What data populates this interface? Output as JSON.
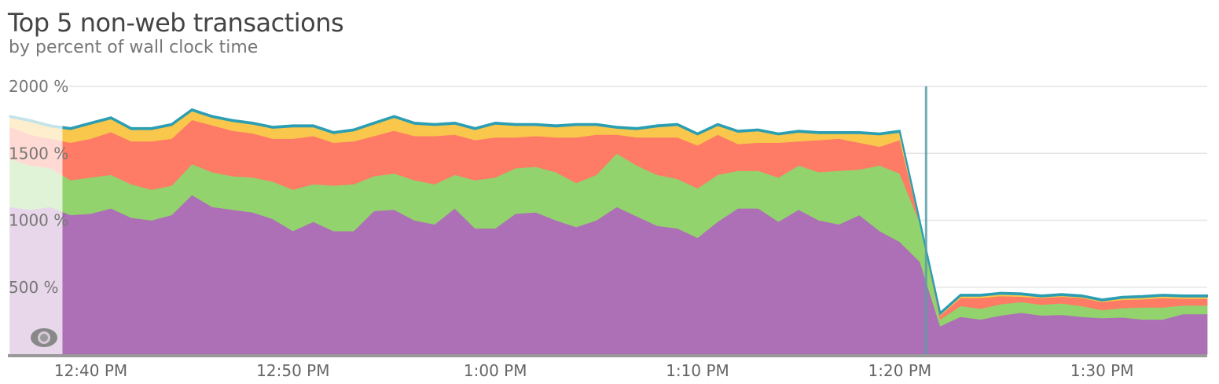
{
  "chart_data": {
    "type": "area",
    "stacked": true,
    "title": "Top 5 non-web transactions",
    "subtitle": "by percent of wall clock time",
    "ylim": [
      0,
      2000
    ],
    "yticks": [
      "500 %",
      "1000 %",
      "1500 %",
      "2000 %"
    ],
    "ytick_values": [
      500,
      1000,
      1500,
      2000
    ],
    "xticks": [
      "12:40 PM",
      "12:50 PM",
      "1:00 PM",
      "1:10 PM",
      "1:20 PM",
      "1:30 PM"
    ],
    "xtick_minutes": [
      40,
      50,
      60,
      70,
      80,
      90
    ],
    "xlim_minutes": [
      35.9,
      95.2
    ],
    "x_minutes": [
      36.0,
      37.0,
      38.0,
      39.0,
      40.0,
      41.0,
      42.0,
      43.0,
      44.0,
      45.0,
      46.0,
      47.0,
      48.0,
      49.0,
      50.0,
      51.0,
      52.0,
      53.0,
      54.0,
      55.0,
      56.0,
      57.0,
      58.0,
      59.0,
      60.0,
      61.0,
      62.0,
      63.0,
      64.0,
      65.0,
      66.0,
      67.0,
      68.0,
      69.0,
      70.0,
      71.0,
      72.0,
      73.0,
      74.0,
      75.0,
      76.0,
      77.0,
      78.0,
      79.0,
      80.0,
      81.0,
      82.0,
      83.0,
      84.0,
      85.0,
      86.0,
      87.0,
      88.0,
      89.0,
      90.0,
      91.0,
      92.0,
      93.0,
      94.0,
      95.2
    ],
    "grid": true,
    "legend": "none",
    "series": [
      {
        "color": "#ad6fb5",
        "values": [
          1100,
          1080,
          1100,
          1040,
          1050,
          1090,
          1020,
          1000,
          1040,
          1190,
          1100,
          1080,
          1060,
          1010,
          920,
          990,
          920,
          920,
          1070,
          1080,
          1000,
          970,
          1090,
          940,
          940,
          1050,
          1060,
          1000,
          950,
          1000,
          1100,
          1030,
          960,
          940,
          870,
          990,
          1090,
          1090,
          990,
          1080,
          1000,
          970,
          1040,
          920,
          840,
          690,
          210,
          280,
          260,
          290,
          310,
          290,
          295,
          280,
          270,
          275,
          260,
          260,
          300,
          300
        ]
      },
      {
        "color": "#92d36e",
        "values": [
          360,
          330,
          290,
          260,
          270,
          250,
          250,
          230,
          220,
          230,
          260,
          250,
          260,
          280,
          310,
          280,
          340,
          350,
          260,
          270,
          300,
          300,
          250,
          360,
          380,
          340,
          340,
          360,
          330,
          340,
          400,
          380,
          380,
          370,
          370,
          350,
          280,
          280,
          330,
          330,
          360,
          400,
          340,
          490,
          510,
          290,
          50,
          80,
          80,
          85,
          80,
          80,
          85,
          80,
          60,
          70,
          90,
          90,
          65,
          65
        ]
      },
      {
        "color": "#fe7b66",
        "values": [
          240,
          230,
          220,
          280,
          290,
          320,
          320,
          360,
          350,
          330,
          350,
          340,
          330,
          320,
          380,
          360,
          320,
          320,
          300,
          320,
          330,
          360,
          300,
          300,
          300,
          230,
          230,
          260,
          340,
          300,
          140,
          210,
          280,
          310,
          320,
          300,
          200,
          210,
          260,
          180,
          240,
          240,
          200,
          140,
          250,
          0,
          30,
          60,
          80,
          60,
          40,
          50,
          50,
          60,
          60,
          60,
          60,
          70,
          50,
          50
        ]
      },
      {
        "color": "#f8c74b",
        "values": [
          70,
          100,
          90,
          100,
          110,
          100,
          90,
          90,
          100,
          70,
          60,
          70,
          70,
          80,
          90,
          70,
          70,
          80,
          90,
          100,
          90,
          80,
          80,
          80,
          100,
          90,
          80,
          80,
          90,
          70,
          50,
          60,
          80,
          90,
          80,
          70,
          90,
          90,
          60,
          70,
          50,
          40,
          70,
          90,
          60,
          0,
          10,
          15,
          15,
          15,
          15,
          10,
          10,
          10,
          10,
          15,
          15,
          15,
          15,
          15
        ]
      },
      {
        "color": "#2b9eb3",
        "values": [
          10,
          10,
          10,
          10,
          10,
          10,
          10,
          10,
          10,
          10,
          10,
          10,
          10,
          10,
          10,
          10,
          10,
          10,
          10,
          10,
          10,
          10,
          10,
          10,
          10,
          10,
          10,
          10,
          10,
          10,
          10,
          10,
          10,
          10,
          10,
          10,
          10,
          10,
          10,
          10,
          10,
          10,
          10,
          10,
          10,
          10,
          10,
          10,
          10,
          10,
          10,
          10,
          10,
          10,
          10,
          10,
          10,
          10,
          10,
          10
        ]
      }
    ],
    "marker_minute": 81.3,
    "axis_color": "#999999",
    "grid_color": "#e4e4e4"
  },
  "overlay_icon": "eye-icon"
}
